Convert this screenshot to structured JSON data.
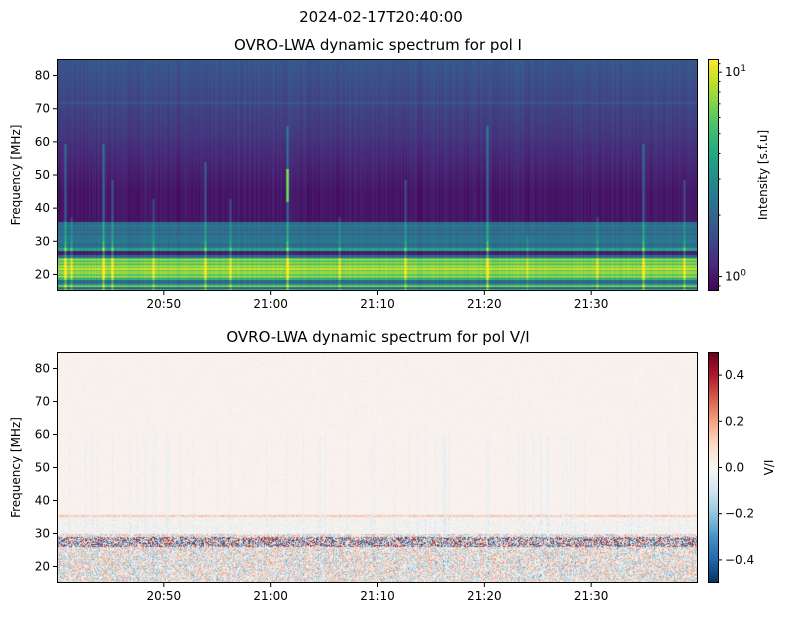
{
  "suptitle": "2024-02-17T20:40:00",
  "chart_data": [
    {
      "type": "heatmap",
      "title": "OVRO-LWA dynamic spectrum for pol I",
      "xlabel": "",
      "ylabel": "Frequency [MHz]",
      "xlim": [
        "20:40",
        "21:40"
      ],
      "ylim": [
        15,
        85
      ],
      "xticks": [
        "20:50",
        "21:00",
        "21:10",
        "21:20",
        "21:30"
      ],
      "yticks": [
        20,
        30,
        40,
        50,
        60,
        70,
        80
      ],
      "colormap": "viridis",
      "color_scale": "log",
      "clim": [
        0.85,
        11.6
      ],
      "colorbar": {
        "label": "Intensity [s.f.u]",
        "ticks": [
          {
            "value": 1,
            "base": "10",
            "exp": "0"
          },
          {
            "value": 10,
            "base": "10",
            "exp": "1"
          }
        ]
      },
      "grid": false
    },
    {
      "type": "heatmap",
      "title": "OVRO-LWA dynamic spectrum for pol V/I",
      "xlabel": "",
      "ylabel": "Frequency [MHz]",
      "xlim": [
        "20:40",
        "21:40"
      ],
      "ylim": [
        15,
        85
      ],
      "xticks": [
        "20:50",
        "21:00",
        "21:10",
        "21:20",
        "21:30"
      ],
      "yticks": [
        20,
        30,
        40,
        50,
        60,
        70,
        80
      ],
      "colormap": "RdBu_r",
      "color_scale": "linear",
      "clim": [
        -0.5,
        0.5
      ],
      "colorbar": {
        "label": "V/I",
        "ticks": [
          "0.4",
          "0.2",
          "0.0",
          "−0.2",
          "−0.4"
        ]
      },
      "grid": false
    }
  ]
}
